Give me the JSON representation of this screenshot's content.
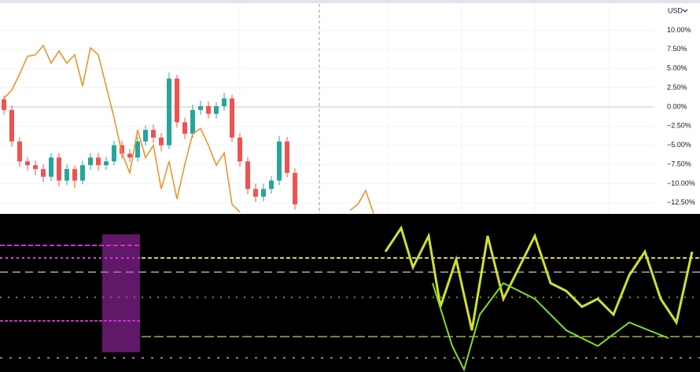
{
  "chart_data": {
    "type": "candlestick",
    "currency": "USD",
    "categories": [
      null,
      null,
      null,
      null,
      null,
      null,
      null,
      null,
      null,
      null,
      null,
      null,
      null,
      null,
      null,
      null,
      null,
      null,
      null,
      null,
      null,
      null,
      null,
      null,
      null,
      null,
      null,
      null,
      null,
      null,
      null,
      null,
      null,
      null,
      null,
      null,
      null,
      null,
      null,
      null,
      null,
      null,
      null,
      null,
      null,
      null,
      null,
      null
    ],
    "candles": {
      "up_color": "#26a69a",
      "down_color": "#ef5350",
      "open": [
        1.0,
        -0.4,
        -4.5,
        -7.1,
        -7.6,
        -8.1,
        -9.1,
        -6.6,
        -9.6,
        -8.1,
        -9.6,
        -7.6,
        -6.6,
        -7.6,
        -7.1,
        -5.0,
        -6.1,
        -6.6,
        -4.5,
        -3.0,
        -4.0,
        -5.0,
        3.7,
        -2.0,
        -3.5,
        -0.4,
        0.1,
        -0.9,
        0.1,
        1.1,
        -4.0,
        -7.1,
        -10.7,
        -11.7,
        -10.7,
        -9.6,
        -4.5,
        -8.6
      ],
      "high": [
        1.5,
        0.2,
        -4.0,
        -6.5,
        -7.0,
        -7.5,
        -6.0,
        -6.0,
        -7.5,
        -7.6,
        -7.0,
        -6.0,
        -6.0,
        -6.5,
        -4.4,
        -4.4,
        -5.5,
        -3.9,
        -2.4,
        -2.3,
        -3.4,
        4.5,
        4.2,
        -1.4,
        0.3,
        0.8,
        0.7,
        0.6,
        1.8,
        1.6,
        -3.4,
        -6.5,
        -10.0,
        -10.0,
        -9.0,
        -3.8,
        -3.9,
        -8.0
      ],
      "low": [
        -1.0,
        -5.2,
        -7.8,
        -8.3,
        -8.9,
        -9.8,
        -9.6,
        -10.4,
        -10.2,
        -10.6,
        -10.1,
        -8.2,
        -8.3,
        -8.2,
        -7.6,
        -6.8,
        -7.2,
        -7.1,
        -5.0,
        -4.7,
        -5.8,
        -5.5,
        -2.7,
        -4.2,
        -4.0,
        -1.0,
        -1.5,
        -1.5,
        -0.5,
        -4.6,
        -7.8,
        -11.4,
        -12.4,
        -12.3,
        -11.3,
        -10.2,
        -9.2,
        -13.4
      ],
      "close": [
        -0.4,
        -4.5,
        -7.1,
        -7.6,
        -8.1,
        -9.1,
        -6.6,
        -9.6,
        -8.1,
        -9.6,
        -7.6,
        -6.6,
        -7.6,
        -7.1,
        -5.0,
        -6.1,
        -6.6,
        -4.5,
        -3.0,
        -4.0,
        -5.0,
        3.7,
        -2.0,
        -3.5,
        -0.4,
        0.1,
        -0.9,
        0.1,
        1.1,
        -4.0,
        -7.1,
        -10.7,
        -11.7,
        -10.7,
        -9.6,
        -4.5,
        -8.6,
        -12.7
      ]
    },
    "series": [
      {
        "color": "#e8962e",
        "values": [
          1.1,
          2.2,
          4.3,
          6.6,
          6.8,
          8.0,
          5.7,
          7.3,
          5.7,
          6.8,
          2.7,
          7.7,
          6.8,
          2.7,
          -1.4,
          -6.0,
          -8.6,
          -3.0,
          -6.6,
          -5.0,
          -10.7,
          -7.1,
          -12.0,
          -7.5,
          -3.5,
          -2.8,
          -5.0,
          -7.6,
          -6.0,
          -12.7,
          -13.7,
          null,
          null,
          null,
          null,
          null,
          null,
          null,
          null,
          null,
          null,
          null,
          null,
          null,
          -13.5,
          -12.7,
          -10.9,
          -13.9
        ]
      }
    ],
    "ylim": [
      -13.95,
      12.3
    ],
    "yticks": [
      {
        "value": 10,
        "label": "10.00%"
      },
      {
        "value": 7.5,
        "label": "7.50%"
      },
      {
        "value": 5,
        "label": "5.00%"
      },
      {
        "value": 2.5,
        "label": "2.50%"
      },
      {
        "value": 0,
        "label": "0.00%"
      },
      {
        "value": -2.5,
        "label": "−2.50%"
      },
      {
        "value": -5,
        "label": "−5.00%"
      },
      {
        "value": -7.5,
        "label": "−7.50%"
      },
      {
        "value": -10,
        "label": "−10.00%"
      },
      {
        "value": -12.5,
        "label": "−12.50%"
      }
    ],
    "grid": true
  }
}
